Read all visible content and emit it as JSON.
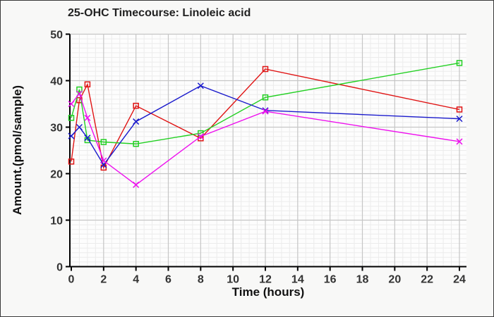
{
  "chart_data": {
    "type": "line",
    "title": "25-OHC Timecourse: Linoleic acid",
    "xlabel": "Time (hours)",
    "ylabel": "Amount.(pmol/sample)",
    "xlim": [
      0,
      24
    ],
    "ylim": [
      0,
      50
    ],
    "x_ticks": [
      0,
      2,
      4,
      6,
      8,
      10,
      12,
      14,
      16,
      18,
      20,
      22,
      24
    ],
    "y_ticks": [
      0,
      10,
      20,
      30,
      40,
      50
    ],
    "grid": {
      "minor_x_step": 0.5,
      "minor_y_step": 1,
      "major_x_step": 2,
      "major_y_step": 10
    },
    "legend": "none",
    "x": [
      0,
      0.5,
      1,
      2,
      4,
      8,
      12,
      24
    ],
    "series": [
      {
        "name": "series-red-squares",
        "color": "#e01414",
        "marker": "square",
        "values": [
          22.6,
          35.8,
          39.2,
          21.3,
          34.6,
          27.6,
          42.5,
          33.8
        ]
      },
      {
        "name": "series-green-squares",
        "color": "#22d022",
        "marker": "square",
        "values": [
          32.0,
          38.1,
          27.2,
          26.8,
          26.4,
          28.7,
          36.4,
          43.8
        ]
      },
      {
        "name": "series-blue-crosses",
        "color": "#1a1acc",
        "marker": "x",
        "values": [
          28.1,
          30.0,
          27.7,
          21.9,
          31.2,
          38.9,
          33.6,
          31.8
        ]
      },
      {
        "name": "series-magenta-crosses",
        "color": "#ee10ee",
        "marker": "x",
        "values": [
          35.0,
          37.2,
          32.0,
          22.8,
          17.6,
          28.0,
          33.4,
          26.9
        ]
      }
    ],
    "colors": {
      "plot_bg": "#fdfdfd",
      "page_bg": "#f8f8f7",
      "grid_major": "#c6c6c6",
      "grid_minor": "#ececec",
      "axis": "#000000",
      "tick_label": "#333333",
      "title_text": "#222222"
    }
  }
}
